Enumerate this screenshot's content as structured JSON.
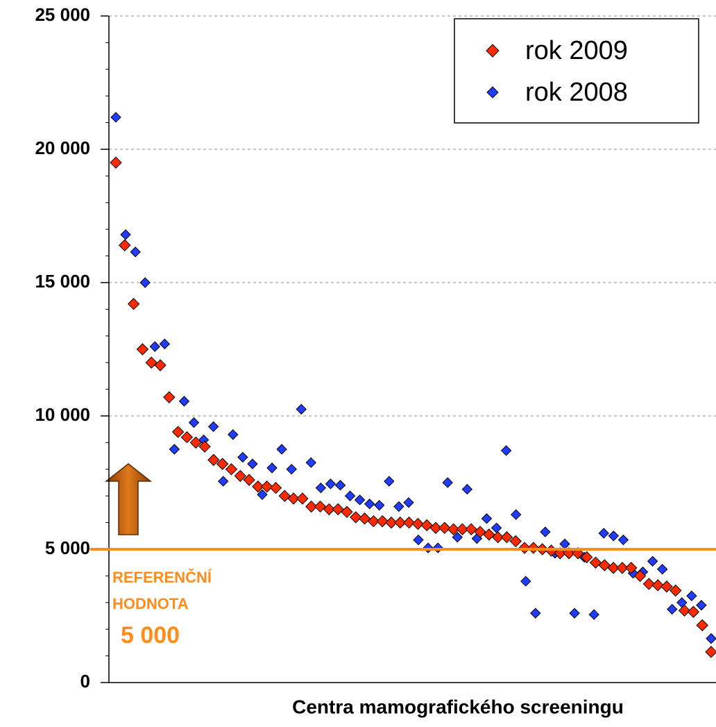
{
  "chart_data": {
    "type": "scatter",
    "x_label": "Centra mamografického screeningu",
    "ylim": [
      0,
      25000
    ],
    "yticks": [
      0,
      {
        "value": 5000,
        "label": "5 000"
      },
      {
        "value": 10000,
        "label": "10 000"
      },
      {
        "value": 15000,
        "label": "15 000"
      },
      {
        "value": 20000,
        "label": "20 000"
      },
      {
        "value": 25000,
        "label": "25 000"
      }
    ],
    "minor_ytick_step": 1000,
    "grid": true,
    "legend": "upper right",
    "series": [
      {
        "name": "rok 2009",
        "color": "#ff2a00",
        "values": [
          19500,
          16400,
          14200,
          12500,
          12000,
          11900,
          10700,
          9400,
          9200,
          9000,
          8850,
          8350,
          8200,
          8000,
          7750,
          7600,
          7350,
          7350,
          7300,
          7000,
          6900,
          6900,
          6600,
          6600,
          6500,
          6500,
          6400,
          6200,
          6150,
          6050,
          6050,
          6000,
          6000,
          6000,
          5950,
          5900,
          5800,
          5800,
          5750,
          5750,
          5750,
          5650,
          5550,
          5450,
          5450,
          5300,
          5050,
          5050,
          5000,
          4950,
          4850,
          4850,
          4850,
          4700,
          4500,
          4400,
          4300,
          4300,
          4300,
          4000,
          3700,
          3650,
          3600,
          3450,
          2700,
          2650,
          2150,
          1150
        ]
      },
      {
        "name": "rok 2008",
        "color": "#1f3cff",
        "values": [
          21200,
          16800,
          16150,
          15000,
          12600,
          12700,
          8750,
          10550,
          9750,
          9100,
          9600,
          7550,
          9300,
          8450,
          8200,
          7050,
          8050,
          8750,
          8000,
          10250,
          8250,
          7300,
          7450,
          7400,
          7000,
          6850,
          6700,
          6650,
          7550,
          6600,
          6750,
          5350,
          5050,
          5050,
          7500,
          5450,
          7250,
          5400,
          6150,
          5800,
          8700,
          6300,
          3800,
          2600,
          5650,
          4850,
          5200,
          2600,
          4700,
          2550,
          5600,
          5500,
          5350,
          4100,
          4150,
          4550,
          4250,
          2750,
          3000,
          3250,
          2900,
          1650
        ]
      }
    ],
    "reference": {
      "value": 5000,
      "color": "#ff8c1a",
      "lines": [
        "REFERENČNÍ",
        "HODNOTA"
      ],
      "value_label": "5 000"
    }
  }
}
